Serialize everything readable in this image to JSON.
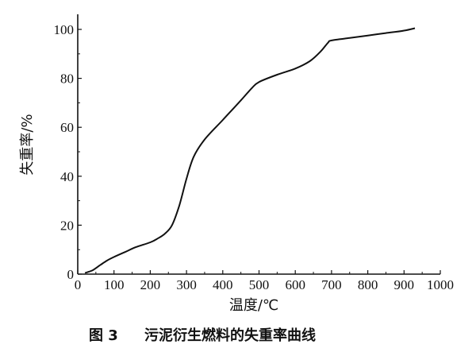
{
  "chart_data": {
    "type": "line",
    "title": "",
    "caption_number": "图 3",
    "caption_text": "污泥衍生燃料的失重率曲线",
    "xlabel": "温度/℃",
    "ylabel": "失重率/%",
    "xlim": [
      0,
      1000
    ],
    "ylim": [
      0,
      105
    ],
    "x_ticks": [
      0,
      100,
      200,
      300,
      400,
      500,
      600,
      700,
      800,
      900,
      1000
    ],
    "y_ticks": [
      0,
      20,
      40,
      60,
      80,
      100
    ],
    "grid": false,
    "legend": false,
    "series": [
      {
        "points": [
          [
            20,
            0.5
          ],
          [
            40,
            1.5
          ],
          [
            60,
            3.5
          ],
          [
            80,
            5.5
          ],
          [
            100,
            7
          ],
          [
            130,
            9
          ],
          [
            160,
            11
          ],
          [
            200,
            13
          ],
          [
            220,
            14.5
          ],
          [
            240,
            16.5
          ],
          [
            260,
            20
          ],
          [
            280,
            28
          ],
          [
            300,
            39
          ],
          [
            320,
            48
          ],
          [
            350,
            55
          ],
          [
            400,
            63
          ],
          [
            450,
            71
          ],
          [
            480,
            76
          ],
          [
            500,
            78.5
          ],
          [
            550,
            81.5
          ],
          [
            600,
            84
          ],
          [
            640,
            87
          ],
          [
            670,
            91
          ],
          [
            690,
            94.5
          ],
          [
            700,
            95.5
          ],
          [
            750,
            96.5
          ],
          [
            800,
            97.5
          ],
          [
            850,
            98.5
          ],
          [
            900,
            99.5
          ],
          [
            930,
            100.5
          ]
        ]
      }
    ]
  }
}
